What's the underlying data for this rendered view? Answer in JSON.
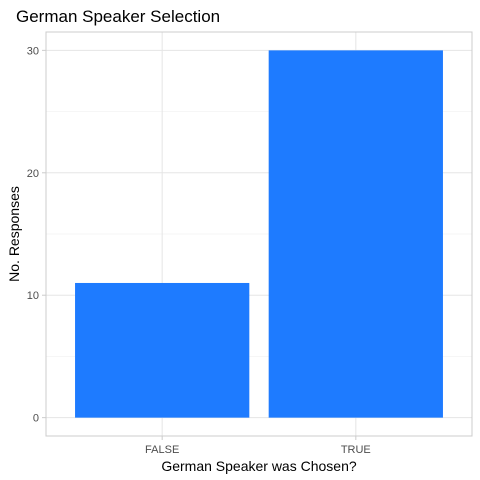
{
  "chart_data": {
    "type": "bar",
    "title": "German Speaker Selection",
    "xlabel": "German Speaker was Chosen?",
    "ylabel": "No. Responses",
    "categories": [
      "FALSE",
      "TRUE"
    ],
    "values": [
      11,
      30
    ],
    "ylim": [
      -1.5,
      31.5
    ],
    "yticks": [
      0,
      10,
      20,
      30
    ],
    "bar_color": "#1e7bff",
    "grid": true,
    "legend": "none"
  }
}
